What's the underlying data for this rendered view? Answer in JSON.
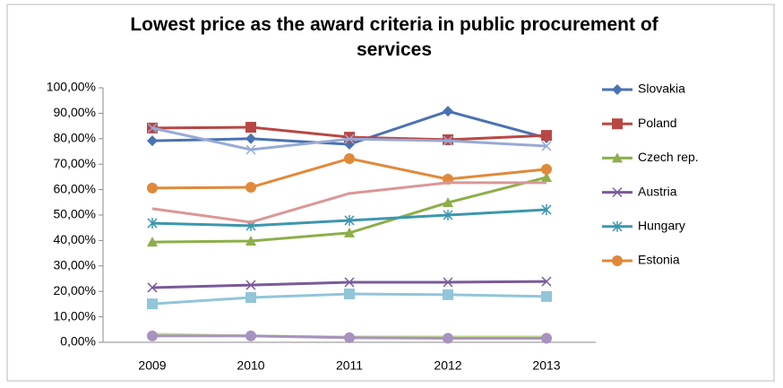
{
  "chart_data": {
    "type": "line",
    "title": "Lowest price as the award criteria in public procurement of services",
    "categories": [
      "2009",
      "2010",
      "2011",
      "2012",
      "2013"
    ],
    "ylim": [
      0,
      100
    ],
    "yticks": [
      {
        "value": 0,
        "label": "0,00%"
      },
      {
        "value": 10,
        "label": "10,00%"
      },
      {
        "value": 20,
        "label": "20,00%"
      },
      {
        "value": 30,
        "label": "30,00%"
      },
      {
        "value": 40,
        "label": "40,00%"
      },
      {
        "value": 50,
        "label": "50,00%"
      },
      {
        "value": 60,
        "label": "60,00%"
      },
      {
        "value": 70,
        "label": "70,00%"
      },
      {
        "value": 80,
        "label": "80,00%"
      },
      {
        "value": 90,
        "label": "90,00%"
      },
      {
        "value": 100,
        "label": "100,00%"
      }
    ],
    "grid": true,
    "legend": "right",
    "series": [
      {
        "name": "Slovakia",
        "color": "#4a72b0",
        "marker": "diamond",
        "values": [
          79.2,
          80,
          77.8,
          90.8,
          80.3
        ]
      },
      {
        "name": "Poland",
        "color": "#b84744",
        "marker": "square",
        "values": [
          84.2,
          84.5,
          80.6,
          79.6,
          81.3
        ]
      },
      {
        "name": "Czech rep.",
        "color": "#8dae4a",
        "marker": "triangle",
        "values": [
          39.4,
          39.8,
          43,
          54.9,
          64.8
        ]
      },
      {
        "name": "Austria",
        "color": "#7a5a9a",
        "marker": "x",
        "values": [
          21.5,
          22.5,
          23.6,
          23.6,
          23.9
        ]
      },
      {
        "name": "Hungary",
        "color": "#3d97ad",
        "marker": "star",
        "values": [
          46.8,
          45.8,
          47.9,
          50,
          52.1
        ]
      },
      {
        "name": "Estonia",
        "color": "#e0893a",
        "marker": "circle",
        "values": [
          60.6,
          60.9,
          72.2,
          64.1,
          68
        ]
      },
      {
        "color": "#97aad6",
        "marker": "x",
        "values": [
          84.2,
          75.7,
          79.9,
          79.2,
          77.1
        ]
      },
      {
        "color": "#d99796",
        "marker": "none",
        "values": [
          52.5,
          47.2,
          58.5,
          62.7,
          62.7
        ]
      },
      {
        "color": "#92c5d9",
        "marker": "square",
        "values": [
          15.1,
          17.6,
          19,
          18.7,
          18
        ]
      },
      {
        "color": "#c4d88a",
        "marker": "none",
        "values": [
          3.2,
          2.5,
          2.1,
          2.1,
          2.1
        ]
      },
      {
        "color": "#a792c0",
        "marker": "circle",
        "values": [
          2.5,
          2.5,
          1.8,
          1.6,
          1.6
        ]
      }
    ]
  }
}
